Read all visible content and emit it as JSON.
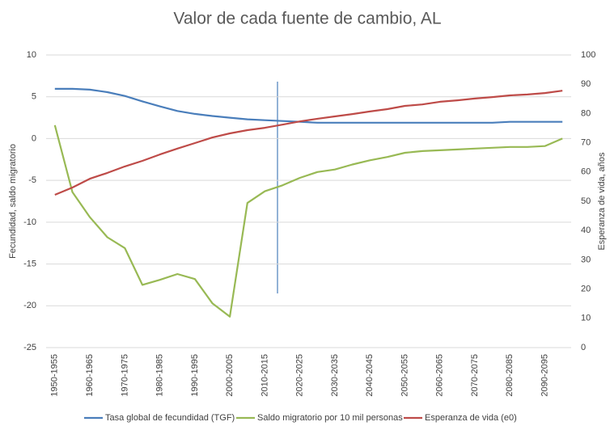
{
  "chart_data": {
    "type": "line",
    "title": "Valor de cada fuente de cambio, AL",
    "y_label": "Fecundidad, saldo migratorio",
    "y2_label": "Esperanza de vida, años",
    "categories": [
      "1950-1955",
      null,
      "1960-1965",
      null,
      "1970-1975",
      null,
      "1980-1985",
      null,
      "1990-1995",
      null,
      "2000-2005",
      null,
      "2010-2015",
      null,
      "2020-2025",
      null,
      "2030-2035",
      null,
      "2040-2045",
      null,
      "2050-2055",
      null,
      "2060-2065",
      null,
      "2070-2075",
      null,
      "2080-2085",
      null,
      "2090-2095",
      null
    ],
    "series": [
      {
        "name": "Tasa global de fecundidad (TGF)",
        "color": "#4a7ebb",
        "values": [
          5.95,
          5.95,
          5.85,
          5.55,
          5.1,
          4.45,
          3.85,
          3.3,
          2.95,
          2.7,
          2.5,
          2.3,
          2.2,
          2.1,
          2.0,
          1.9,
          1.9,
          1.9,
          1.9,
          1.9,
          1.9,
          1.9,
          1.9,
          1.9,
          1.9,
          1.9,
          2.0,
          2.0,
          2.0,
          2.0
        ]
      },
      {
        "name": "Saldo migratorio por 10 mil personas",
        "color": "#98b954",
        "values": [
          1.6,
          -6.4,
          -9.4,
          -11.8,
          -13.1,
          -17.5,
          -16.9,
          -16.2,
          -16.8,
          -19.7,
          -21.3,
          -7.7,
          -6.3,
          -5.6,
          -4.7,
          -4.0,
          -3.7,
          -3.1,
          -2.6,
          -2.2,
          -1.7,
          -1.5,
          -1.4,
          -1.3,
          -1.2,
          -1.1,
          -1.0,
          -1.0,
          -0.9,
          0
        ]
      },
      {
        "name": "Esperanza de vida (e0)",
        "color": "#be4b48",
        "axis": "y2",
        "values": [
          52.2,
          54.7,
          57.7,
          59.7,
          61.9,
          63.8,
          66,
          68,
          69.9,
          71.8,
          73.2,
          74.3,
          75.1,
          76.2,
          77.3,
          78.2,
          79,
          79.8,
          80.7,
          81.5,
          82.6,
          83.1,
          84,
          84.5,
          85.1,
          85.6,
          86.2,
          86.5,
          87,
          87.8
        ]
      }
    ],
    "ylim": [
      -25,
      10
    ],
    "yticks": [
      -25,
      -20,
      -15,
      -10,
      -5,
      0,
      5,
      10
    ],
    "y2lim": [
      0,
      100
    ],
    "y2ticks": [
      0,
      10,
      20,
      30,
      40,
      50,
      60,
      70,
      80,
      90,
      100
    ],
    "legend": "bottom"
  }
}
